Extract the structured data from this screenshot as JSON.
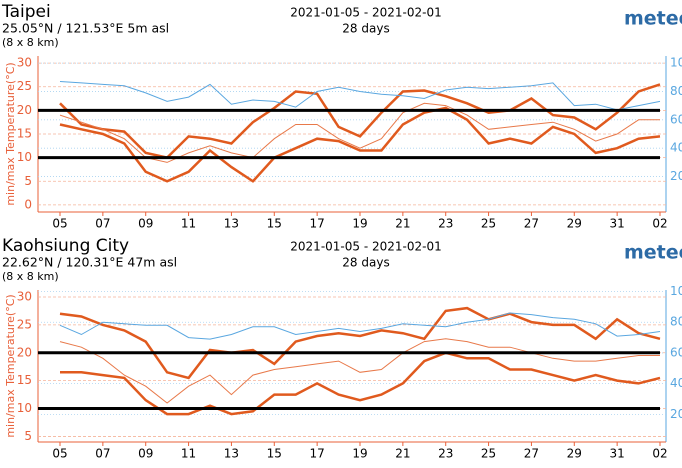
{
  "chart_data": [
    {
      "type": "line",
      "title": "Taipei",
      "location": "25.05°N / 121.53°E   5m asl",
      "resolution": "(8 x 8 km)",
      "period": "2021-01-05 - 2021-02-01",
      "days": "28 days",
      "brand": "meteo",
      "y_label": "min/max Temperature(°C)",
      "categories": [
        "05",
        null,
        "07",
        null,
        "09",
        null,
        "11",
        null,
        "13",
        null,
        "15",
        null,
        "17",
        null,
        "19",
        null,
        "21",
        null,
        "23",
        null,
        "25",
        null,
        "27",
        null,
        "29",
        null,
        "31",
        null,
        "02"
      ],
      "ylim": [
        -1.5,
        31.5
      ],
      "yticks": [
        0,
        5,
        10,
        15,
        20,
        25,
        30
      ],
      "y2lim": [
        -5,
        105
      ],
      "y2ticks": [
        20,
        40,
        60,
        80,
        100
      ],
      "grid": true,
      "hlines": [
        20,
        10
      ],
      "series": [
        {
          "color": "#e05a1e",
          "width": 2.5,
          "values": [
            21.5,
            17,
            16,
            15.5,
            11,
            10,
            14.5,
            14,
            13,
            17.5,
            20.5,
            24,
            23.5,
            16.5,
            14.5,
            19.5,
            24,
            24.2,
            23,
            21.5,
            19.5,
            20,
            22.5,
            19,
            18.5,
            16,
            19.5,
            24,
            25.5
          ]
        },
        {
          "color": "#e05a1e",
          "width": 2.5,
          "values": [
            17,
            16,
            15,
            13,
            7,
            5,
            7,
            11.5,
            8,
            5,
            10,
            12,
            14,
            13.5,
            11.5,
            11.5,
            17,
            19.5,
            20.5,
            18,
            13,
            14,
            13,
            16.5,
            15,
            11,
            12,
            14,
            14.5
          ]
        },
        {
          "color": "#e8794a",
          "width": 1,
          "values": [
            19,
            17.5,
            16,
            14,
            10,
            9,
            11,
            12.5,
            11,
            10,
            14,
            17,
            17,
            14,
            12,
            14,
            19.5,
            21.5,
            21,
            19,
            16,
            16.5,
            17,
            17.5,
            16,
            13.5,
            15,
            18,
            18
          ]
        },
        {
          "color": "#5aa7e0",
          "width": 1,
          "axis": "y2",
          "values": [
            87,
            86,
            85,
            84,
            79,
            73,
            76,
            85,
            71,
            74,
            73,
            69,
            80,
            83,
            80,
            78,
            77,
            75,
            81,
            83,
            82,
            83,
            84,
            86,
            70,
            71,
            67,
            70,
            73
          ]
        }
      ]
    },
    {
      "type": "line",
      "title": "Kaohsiung City",
      "location": "22.62°N / 120.31°E   47m asl",
      "resolution": "(8 x 8 km)",
      "period": "2021-01-05 - 2021-02-01",
      "days": "28 days",
      "brand": "meteo",
      "y_label": "min/max Temperature(°C)",
      "categories": [
        "05",
        null,
        "07",
        null,
        "09",
        null,
        "11",
        null,
        "13",
        null,
        "15",
        null,
        "17",
        null,
        "19",
        null,
        "21",
        null,
        "23",
        null,
        "25",
        null,
        "27",
        null,
        "29",
        null,
        "31",
        null,
        "02"
      ],
      "ylim": [
        4,
        31.25
      ],
      "yticks": [
        5,
        10,
        15,
        20,
        25,
        30
      ],
      "y2lim": [
        2,
        101
      ],
      "y2ticks": [
        20,
        40,
        60,
        80,
        100
      ],
      "grid": true,
      "hlines": [
        20,
        10
      ],
      "series": [
        {
          "color": "#e05a1e",
          "width": 2.5,
          "values": [
            27,
            26.5,
            25,
            24,
            22,
            16.5,
            15.5,
            20.5,
            20,
            20.5,
            18,
            22,
            23,
            23.5,
            23,
            24,
            23.5,
            22.5,
            27.5,
            28,
            26,
            27,
            25.5,
            25,
            25,
            22.5,
            26,
            23.5,
            22.5
          ]
        },
        {
          "color": "#e05a1e",
          "width": 2.5,
          "values": [
            16.5,
            16.5,
            16,
            15.5,
            11.5,
            9,
            9,
            10.5,
            9,
            9.5,
            12.5,
            12.5,
            14.5,
            12.5,
            11.5,
            12.5,
            14.5,
            18.5,
            20,
            19,
            19,
            17,
            17,
            16,
            15,
            16,
            15,
            14.5,
            15.5
          ]
        },
        {
          "color": "#e8794a",
          "width": 1,
          "values": [
            22,
            21,
            19,
            16,
            14,
            11,
            14,
            16,
            12.5,
            16,
            17,
            17.5,
            18,
            18.5,
            16.5,
            17,
            20,
            22,
            22.5,
            22,
            21,
            21,
            20,
            19,
            18.5,
            18.5,
            19,
            19.5,
            19.5
          ]
        },
        {
          "color": "#5aa7e0",
          "width": 1,
          "axis": "y2",
          "values": [
            78,
            72,
            80,
            79,
            78,
            78,
            70,
            69,
            72,
            77,
            77,
            72,
            74,
            76,
            74,
            76,
            79,
            78,
            77,
            80,
            82,
            86,
            85,
            83,
            82,
            79,
            71,
            72,
            74
          ]
        }
      ]
    }
  ]
}
